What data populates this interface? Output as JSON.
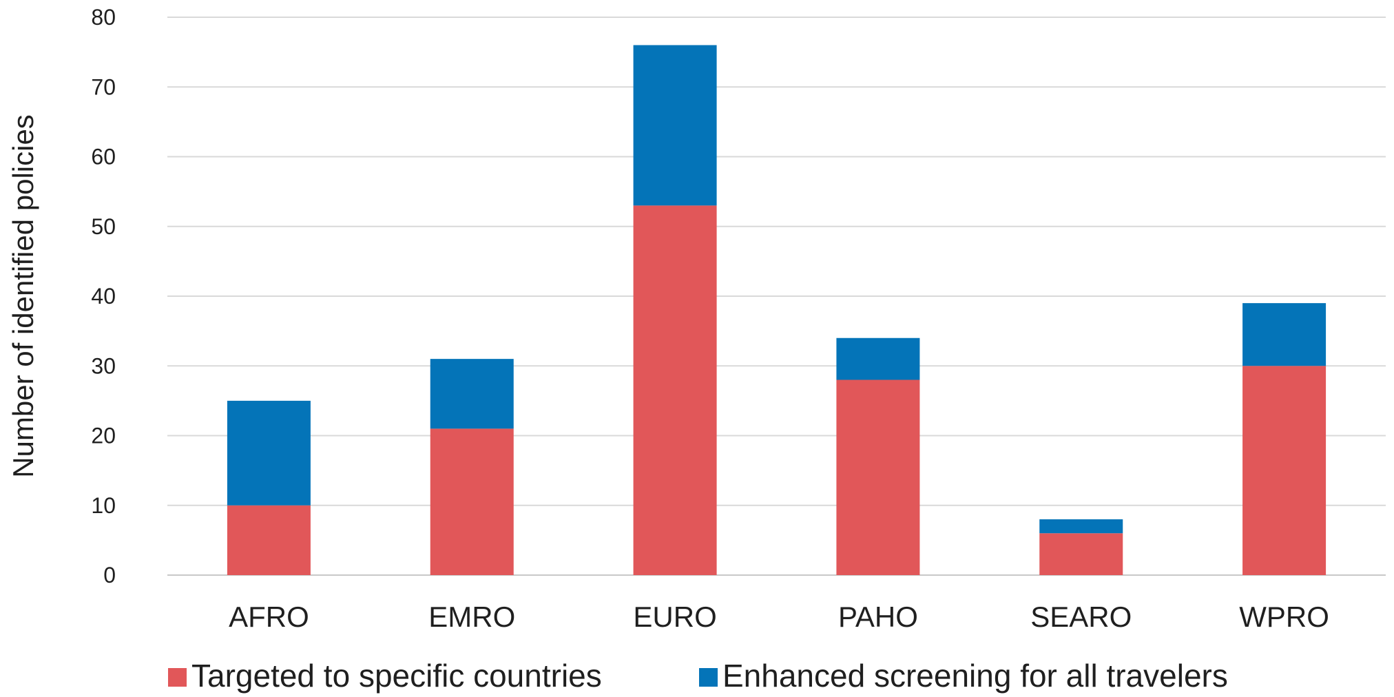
{
  "chart_data": {
    "type": "bar",
    "stacked": true,
    "categories": [
      "AFRO",
      "EMRO",
      "EURO",
      "PAHO",
      "SEARO",
      "WPRO"
    ],
    "series": [
      {
        "name": "Targeted to specific countries",
        "values": [
          10,
          21,
          53,
          28,
          6,
          30
        ],
        "color": "#e15759"
      },
      {
        "name": "Enhanced screening for all travelers",
        "values": [
          15,
          10,
          23,
          6,
          2,
          9
        ],
        "color": "#0474b8"
      }
    ],
    "title": "",
    "xlabel": "",
    "ylabel": "Number of identified policies",
    "ylim": [
      0,
      80
    ],
    "yticks": [
      0,
      10,
      20,
      30,
      40,
      50,
      60,
      70,
      80
    ],
    "grid": true,
    "legend_position": "bottom"
  }
}
